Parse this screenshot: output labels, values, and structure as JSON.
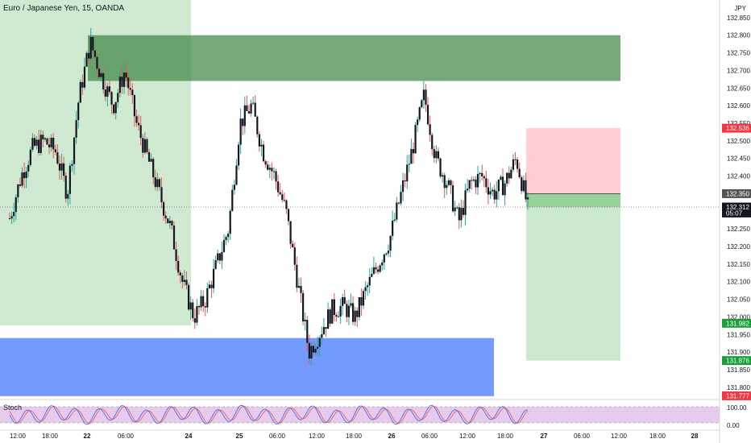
{
  "header": {
    "title": "Euro / Japanese Yen, 15, OANDA",
    "currency": "JPY"
  },
  "colors": {
    "up": "#26a69a",
    "down": "#ef5350",
    "candle_body": "#131722",
    "supply_zone": "#2e7d32",
    "demand_zone": "#2962ff",
    "session_box": "#c8e6c9",
    "stop_zone": "#ffcdd2",
    "target_zone": "#c8e6c9",
    "stoch_band": "#e1bee7",
    "stoch_k": "#2962ff",
    "stoch_d": "#ef5350"
  },
  "indicator": {
    "label": "Stoch",
    "levels": [
      "100.00",
      "0.00"
    ]
  },
  "chart_data": {
    "type": "candlestick",
    "title": "Euro / Japanese Yen, 15, OANDA",
    "ylim": [
      131.77,
      132.9
    ],
    "y_ticks": [
      "132.850",
      "132.800",
      "132.750",
      "132.700",
      "132.650",
      "132.600",
      "132.550",
      "132.500",
      "132.450",
      "132.400",
      "132.350",
      "132.300",
      "132.250",
      "132.200",
      "132.150",
      "132.100",
      "132.050",
      "132.000",
      "131.950",
      "131.900",
      "131.850",
      "131.800"
    ],
    "x_ticks": [
      "12:00",
      "18:00",
      "22",
      "06:00",
      "24",
      "25",
      "06:00",
      "12:00",
      "18:00",
      "26",
      "06:00",
      "12:00",
      "18:00",
      "27",
      "06:00",
      "12:00",
      "18:00",
      "28"
    ],
    "price_path": [
      {
        "x": "12:00",
        "y": 132.28
      },
      {
        "x": "13:00",
        "y": 132.4
      },
      {
        "x": "15:00",
        "y": 132.48
      },
      {
        "x": "17:00",
        "y": 132.5
      },
      {
        "x": "18:00",
        "y": 132.47
      },
      {
        "x": "19:00",
        "y": 132.35
      },
      {
        "x": "20:00",
        "y": 132.62
      },
      {
        "x": "21:00",
        "y": 132.78
      },
      {
        "x": "22",
        "y": 132.68
      },
      {
        "x": "02:00",
        "y": 132.6
      },
      {
        "x": "04:00",
        "y": 132.7
      },
      {
        "x": "06:00",
        "y": 132.55
      },
      {
        "x": "08:00",
        "y": 132.45
      },
      {
        "x": "10:00",
        "y": 132.35
      },
      {
        "x": "12:00",
        "y": 132.25
      },
      {
        "x": "13:00",
        "y": 132.1
      },
      {
        "x": "14:00",
        "y": 132.0
      },
      {
        "x": "16:00",
        "y": 132.05
      },
      {
        "x": "18:00",
        "y": 132.15
      },
      {
        "x": "20:00",
        "y": 132.25
      },
      {
        "x": "22:00",
        "y": 132.55
      },
      {
        "x": "23:00",
        "y": 132.6
      },
      {
        "x": "24",
        "y": 132.47
      },
      {
        "x": "02:00",
        "y": 132.4
      },
      {
        "x": "04:00",
        "y": 132.3
      },
      {
        "x": "05:00",
        "y": 132.1
      },
      {
        "x": "06:00",
        "y": 131.9
      },
      {
        "x": "08:00",
        "y": 131.96
      },
      {
        "x": "10:00",
        "y": 132.02
      },
      {
        "x": "12:00",
        "y": 132.03
      },
      {
        "x": "14:00",
        "y": 132.0
      },
      {
        "x": "16:00",
        "y": 132.08
      },
      {
        "x": "18:00",
        "y": 132.15
      },
      {
        "x": "20:00",
        "y": 132.22
      },
      {
        "x": "22:00",
        "y": 132.35
      },
      {
        "x": "25",
        "y": 132.48
      },
      {
        "x": "02:00",
        "y": 132.63
      },
      {
        "x": "04:00",
        "y": 132.45
      },
      {
        "x": "06:00",
        "y": 132.38
      },
      {
        "x": "08:00",
        "y": 132.27
      },
      {
        "x": "10:00",
        "y": 132.38
      },
      {
        "x": "12:00",
        "y": 132.4
      },
      {
        "x": "14:00",
        "y": 132.35
      },
      {
        "x": "16:00",
        "y": 132.38
      },
      {
        "x": "17:00",
        "y": 132.45
      },
      {
        "x": "18:00",
        "y": 132.31
      }
    ],
    "zones": [
      {
        "name": "supply",
        "from": 132.67,
        "to": 132.8
      },
      {
        "name": "demand",
        "from": 131.775,
        "to": 131.94
      },
      {
        "name": "stop",
        "from": 132.35,
        "to": 132.536
      },
      {
        "name": "target",
        "from": 131.876,
        "to": 132.35
      }
    ],
    "price_labels": [
      {
        "text": "132.536",
        "role": "stop"
      },
      {
        "text": "132.350",
        "role": "entry"
      },
      {
        "text": "132.312",
        "role": "last"
      },
      {
        "text": "05:07",
        "role": "countdown"
      },
      {
        "text": "131.982",
        "role": "green"
      },
      {
        "text": "131.876",
        "role": "target"
      },
      {
        "text": "131.777",
        "role": "red-bottom"
      }
    ],
    "last_price": 132.312
  }
}
